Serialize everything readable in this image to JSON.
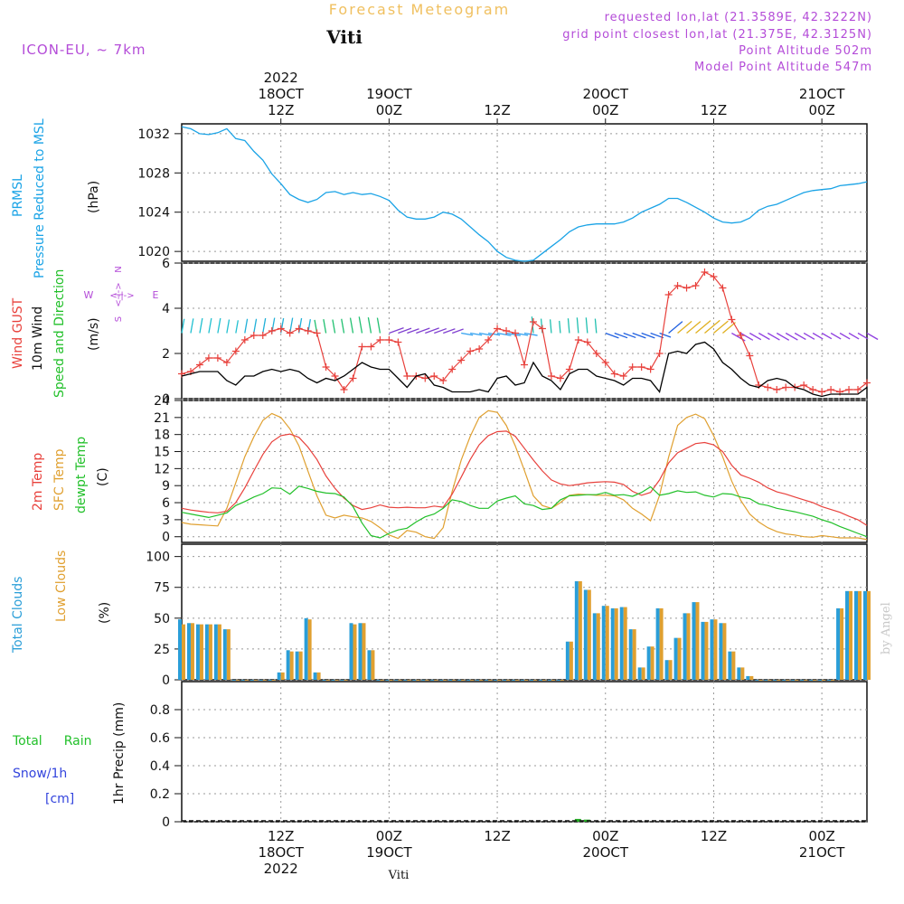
{
  "header": {
    "title": "Forecast Meteogram",
    "location": "Viti",
    "model": "ICON-EU, ~ 7km",
    "requested": "requested lon,lat (21.3589E, 42.3222N)",
    "grid_point": "grid point closest lon,lat (21.375E, 42.3125N)",
    "point_altitude": "Point Altitude 502m",
    "model_altitude": "Model Point Altitude 547m",
    "footer_location": "Viti",
    "credit": "by Angel"
  },
  "time_axis": {
    "top_labels": [
      {
        "t": 12,
        "lines": [
          "2022",
          "18OCT",
          "12Z"
        ]
      },
      {
        "t": 24,
        "lines": [
          "19OCT",
          "00Z"
        ]
      },
      {
        "t": 36,
        "lines": [
          "12Z"
        ]
      },
      {
        "t": 48,
        "lines": [
          "20OCT",
          "00Z"
        ]
      },
      {
        "t": 60,
        "lines": [
          "12Z"
        ]
      },
      {
        "t": 72,
        "lines": [
          "21OCT",
          "00Z"
        ]
      }
    ],
    "bottom_labels": [
      {
        "t": 12,
        "lines": [
          "12Z",
          "18OCT",
          "2022"
        ]
      },
      {
        "t": 24,
        "lines": [
          "00Z",
          "19OCT"
        ]
      },
      {
        "t": 36,
        "lines": [
          "12Z"
        ]
      },
      {
        "t": 48,
        "lines": [
          "00Z",
          "20OCT"
        ]
      },
      {
        "t": 60,
        "lines": [
          "12Z"
        ]
      },
      {
        "t": 72,
        "lines": [
          "00Z",
          "21OCT"
        ]
      }
    ]
  },
  "panels": {
    "pressure": {
      "labels": [
        "PRMSL",
        "Pressure Reduced to MSL"
      ],
      "unit": "(hPa)",
      "color": "#1aa3e6",
      "ylim": [
        1019,
        1033
      ],
      "ticks": [
        "1020",
        "1024",
        "1028",
        "1032"
      ]
    },
    "wind": {
      "labels": [
        "Wind GUST",
        "10m Wind",
        "Speed and Direction"
      ],
      "unit": "(m/s)",
      "compass": {
        "n": "N",
        "s": "S",
        "w": "W",
        "e": "E",
        "arrows": "<-|->"
      },
      "ylim": [
        0,
        6
      ],
      "ticks": [
        "0",
        "2",
        "4",
        "6"
      ]
    },
    "temp": {
      "labels": [
        "2m Temp",
        "SFC Temp",
        "dewpt Temp"
      ],
      "unit": "(C)",
      "ylim": [
        -1,
        24
      ],
      "ticks": [
        "0",
        "3",
        "6",
        "9",
        "12",
        "15",
        "18",
        "21",
        "24"
      ]
    },
    "clouds": {
      "labels": [
        "Total Clouds",
        "Low Clouds"
      ],
      "unit": "(%)",
      "ylim": [
        0,
        110
      ],
      "ticks": [
        "0",
        "25",
        "50",
        "75",
        "100"
      ]
    },
    "precip": {
      "labels": [
        "Total",
        "Rain",
        "Snow/1h",
        "[cm]"
      ],
      "axis_label": "1hr Precip (mm)",
      "ylim": [
        0,
        1
      ],
      "ticks": [
        "0",
        "0.2",
        "0.4",
        "0.6",
        "0.8"
      ]
    }
  },
  "colors": {
    "pressure": "#1aa3e6",
    "gust": "#e8413c",
    "wind": "#000000",
    "temp2m": "#e8413c",
    "sfc": "#e0a030",
    "dewpt": "#22c02a",
    "total_cloud": "#2a9ed8",
    "low_cloud": "#e0a030",
    "rain": "#22aa22",
    "snow": "#3344dd",
    "title": "#f0c060",
    "purple": "#b44cd8"
  },
  "chart_data": {
    "type": "line",
    "x_unit": "hours from 18OCT 00Z",
    "xlim": [
      1,
      77
    ],
    "pressure_hPa": {
      "t": [
        1,
        2,
        3,
        4,
        5,
        6,
        7,
        8,
        9,
        10,
        11,
        12,
        13,
        14,
        15,
        16,
        17,
        18,
        19,
        20,
        21,
        22,
        23,
        24,
        25,
        26,
        27,
        28,
        29,
        30,
        31,
        32,
        33,
        34,
        35,
        36,
        37,
        38,
        39,
        40,
        41,
        42,
        43,
        44,
        45,
        46,
        47,
        48,
        49,
        50,
        51,
        52,
        53,
        54,
        55,
        56,
        57,
        58,
        59,
        60,
        61,
        62,
        63,
        64,
        65,
        66,
        67,
        68,
        69,
        70,
        71,
        72,
        73,
        74,
        75,
        76,
        77
      ],
      "v": [
        1032.7,
        1032.5,
        1032.0,
        1031.9,
        1032.1,
        1032.5,
        1031.5,
        1031.3,
        1030.2,
        1029.3,
        1027.9,
        1026.9,
        1025.8,
        1025.3,
        1025.0,
        1025.3,
        1026.0,
        1026.1,
        1025.8,
        1026.0,
        1025.8,
        1025.9,
        1025.6,
        1025.2,
        1024.2,
        1023.5,
        1023.3,
        1023.3,
        1023.5,
        1024.0,
        1023.8,
        1023.3,
        1022.5,
        1021.7,
        1021.0,
        1020.0,
        1019.4,
        1019.1,
        1019.0,
        1019.1,
        1019.8,
        1020.5,
        1021.2,
        1022.0,
        1022.5,
        1022.7,
        1022.8,
        1022.8,
        1022.8,
        1023.0,
        1023.4,
        1024.0,
        1024.4,
        1024.8,
        1025.4,
        1025.4,
        1025.0,
        1024.5,
        1024.0,
        1023.4,
        1023.0,
        1022.9,
        1023.0,
        1023.4,
        1024.2,
        1024.6,
        1024.8,
        1025.2,
        1025.6,
        1026.0,
        1026.2,
        1026.3,
        1026.4,
        1026.7,
        1026.8,
        1026.9,
        1027.1
      ]
    },
    "wind_gust_ms": {
      "t": [
        1,
        2,
        3,
        4,
        5,
        6,
        7,
        8,
        9,
        10,
        11,
        12,
        13,
        14,
        15,
        16,
        17,
        18,
        19,
        20,
        21,
        22,
        23,
        24,
        25,
        26,
        27,
        28,
        29,
        30,
        31,
        32,
        33,
        34,
        35,
        36,
        37,
        38,
        39,
        40,
        41,
        42,
        43,
        44,
        45,
        46,
        47,
        48,
        49,
        50,
        51,
        52,
        53,
        54,
        55,
        56,
        57,
        58,
        59,
        60,
        61,
        62,
        63,
        64,
        65,
        66,
        67,
        68,
        69,
        70,
        71,
        72,
        73,
        74,
        75,
        76,
        77
      ],
      "v": [
        1.1,
        1.2,
        1.5,
        1.8,
        1.8,
        1.6,
        2.1,
        2.6,
        2.8,
        2.8,
        3.0,
        3.1,
        2.9,
        3.1,
        3.0,
        2.9,
        1.4,
        1.0,
        0.4,
        0.9,
        2.3,
        2.3,
        2.6,
        2.6,
        2.5,
        1.0,
        1.0,
        0.9,
        1.0,
        0.8,
        1.3,
        1.7,
        2.1,
        2.2,
        2.6,
        3.1,
        3.0,
        2.9,
        1.5,
        3.4,
        3.1,
        1.0,
        0.9,
        1.3,
        2.6,
        2.5,
        2.0,
        1.6,
        1.1,
        1.0,
        1.4,
        1.4,
        1.3,
        2.0,
        4.6,
        5.0,
        4.9,
        5.0,
        5.6,
        5.4,
        4.9,
        3.5,
        2.8,
        1.9,
        0.6,
        0.5,
        0.4,
        0.5,
        0.5,
        0.6,
        0.4,
        0.3,
        0.4,
        0.3,
        0.4,
        0.4,
        0.7
      ]
    },
    "wind_speed_ms": {
      "t": [
        1,
        2,
        3,
        4,
        5,
        6,
        7,
        8,
        9,
        10,
        11,
        12,
        13,
        14,
        15,
        16,
        17,
        18,
        19,
        20,
        21,
        22,
        23,
        24,
        25,
        26,
        27,
        28,
        29,
        30,
        31,
        32,
        33,
        34,
        35,
        36,
        37,
        38,
        39,
        40,
        41,
        42,
        43,
        44,
        45,
        46,
        47,
        48,
        49,
        50,
        51,
        52,
        53,
        54,
        55,
        56,
        57,
        58,
        59,
        60,
        61,
        62,
        63,
        64,
        65,
        66,
        67,
        68,
        69,
        70,
        71,
        72,
        73,
        74,
        75,
        76,
        77
      ],
      "v": [
        1.0,
        1.1,
        1.2,
        1.2,
        1.2,
        0.8,
        0.6,
        1.0,
        1.0,
        1.2,
        1.3,
        1.2,
        1.3,
        1.2,
        0.9,
        0.7,
        0.9,
        0.8,
        1.0,
        1.3,
        1.6,
        1.4,
        1.3,
        1.3,
        0.9,
        0.5,
        1.0,
        1.1,
        0.6,
        0.5,
        0.3,
        0.3,
        0.3,
        0.4,
        0.3,
        0.9,
        1.0,
        0.6,
        0.7,
        1.6,
        1.0,
        0.8,
        0.4,
        1.1,
        1.3,
        1.3,
        1.0,
        0.9,
        0.8,
        0.6,
        0.9,
        0.9,
        0.8,
        0.3,
        2.0,
        2.1,
        2.0,
        2.4,
        2.5,
        2.2,
        1.6,
        1.3,
        0.9,
        0.6,
        0.5,
        0.8,
        0.9,
        0.8,
        0.5,
        0.4,
        0.2,
        0.1,
        0.2,
        0.2,
        0.2,
        0.2,
        0.5
      ]
    },
    "temp_2m_C": {
      "t": [
        1,
        2,
        3,
        4,
        5,
        6,
        7,
        8,
        9,
        10,
        11,
        12,
        13,
        14,
        15,
        16,
        17,
        18,
        19,
        20,
        21,
        22,
        23,
        24,
        25,
        26,
        27,
        28,
        29,
        30,
        31,
        32,
        33,
        34,
        35,
        36,
        37,
        38,
        39,
        40,
        41,
        42,
        43,
        44,
        45,
        46,
        47,
        48,
        49,
        50,
        51,
        52,
        53,
        54,
        55,
        56,
        57,
        58,
        59,
        60,
        61,
        62,
        63,
        64,
        65,
        66,
        67,
        68,
        69,
        70,
        71,
        72,
        73,
        74,
        75,
        76,
        77
      ],
      "v": [
        5.0,
        4.7,
        4.5,
        4.3,
        4.2,
        4.5,
        6.0,
        8.6,
        11.6,
        14.5,
        16.7,
        17.8,
        18.1,
        17.5,
        15.8,
        13.6,
        10.7,
        8.5,
        6.8,
        5.5,
        4.8,
        5.1,
        5.6,
        5.2,
        5.1,
        5.2,
        5.1,
        5.1,
        5.4,
        5.2,
        7.5,
        10.5,
        13.6,
        16.2,
        17.8,
        18.5,
        18.6,
        17.7,
        15.6,
        13.5,
        11.6,
        10.0,
        9.3,
        9.0,
        9.2,
        9.5,
        9.6,
        9.7,
        9.6,
        9.2,
        8.0,
        7.3,
        7.8,
        10.0,
        13.0,
        14.8,
        15.6,
        16.4,
        16.6,
        16.2,
        15.0,
        12.6,
        10.9,
        10.3,
        9.6,
        8.6,
        7.9,
        7.5,
        7.0,
        6.5,
        6.0,
        5.3,
        4.8,
        4.3,
        3.6,
        3.0,
        2.0
      ]
    },
    "temp_sfc_C": {
      "t": [
        1,
        2,
        3,
        4,
        5,
        6,
        7,
        8,
        9,
        10,
        11,
        12,
        13,
        14,
        15,
        16,
        17,
        18,
        19,
        20,
        21,
        22,
        23,
        24,
        25,
        26,
        27,
        28,
        29,
        30,
        31,
        32,
        33,
        34,
        35,
        36,
        37,
        38,
        39,
        40,
        41,
        42,
        43,
        44,
        45,
        46,
        47,
        48,
        49,
        50,
        51,
        52,
        53,
        54,
        55,
        56,
        57,
        58,
        59,
        60,
        61,
        62,
        63,
        64,
        65,
        66,
        67,
        68,
        69,
        70,
        71,
        72,
        73,
        74,
        75,
        76,
        77
      ],
      "v": [
        2.5,
        2.2,
        2.1,
        2.0,
        1.9,
        5.0,
        9.5,
        14.1,
        17.6,
        20.5,
        21.7,
        21.0,
        19.0,
        16.0,
        11.6,
        7.2,
        3.8,
        3.3,
        3.8,
        3.5,
        3.3,
        2.7,
        1.6,
        0.3,
        -0.3,
        1.1,
        0.8,
        0.0,
        -0.3,
        1.6,
        8.0,
        13.5,
        17.7,
        21.0,
        22.2,
        21.9,
        19.6,
        16.0,
        11.7,
        7.2,
        5.5,
        5.0,
        6.0,
        7.3,
        7.5,
        7.4,
        7.3,
        7.3,
        7.2,
        6.5,
        5.0,
        4.0,
        2.8,
        7.3,
        14.0,
        19.6,
        21.0,
        21.6,
        20.8,
        17.8,
        14.1,
        9.8,
        6.4,
        4.0,
        2.6,
        1.6,
        0.9,
        0.5,
        0.3,
        0.0,
        -0.1,
        0.2,
        0.0,
        -0.2,
        -0.2,
        -0.2,
        -0.5
      ]
    },
    "temp_dewpt_C": {
      "t": [
        1,
        2,
        3,
        4,
        5,
        6,
        7,
        8,
        9,
        10,
        11,
        12,
        13,
        14,
        15,
        16,
        17,
        18,
        19,
        20,
        21,
        22,
        23,
        24,
        25,
        26,
        27,
        28,
        29,
        30,
        31,
        32,
        33,
        34,
        35,
        36,
        37,
        38,
        39,
        40,
        41,
        42,
        43,
        44,
        45,
        46,
        47,
        48,
        49,
        50,
        51,
        52,
        53,
        54,
        55,
        56,
        57,
        58,
        59,
        60,
        61,
        62,
        63,
        64,
        65,
        66,
        67,
        68,
        69,
        70,
        71,
        72,
        73,
        74,
        75,
        76,
        77
      ],
      "v": [
        4.3,
        4.0,
        3.7,
        3.4,
        3.8,
        4.2,
        5.5,
        6.2,
        7.0,
        7.6,
        8.6,
        8.5,
        7.5,
        8.9,
        8.5,
        8.0,
        7.7,
        7.6,
        7.0,
        5.3,
        2.4,
        0.2,
        -0.2,
        0.6,
        1.2,
        1.5,
        2.6,
        3.5,
        4.0,
        5.0,
        6.5,
        6.2,
        5.5,
        5.0,
        5.0,
        6.3,
        6.8,
        7.2,
        5.8,
        5.5,
        4.8,
        5.0,
        6.5,
        7.2,
        7.3,
        7.4,
        7.4,
        7.8,
        7.3,
        7.4,
        7.1,
        7.8,
        8.8,
        7.3,
        7.6,
        8.1,
        7.8,
        7.9,
        7.3,
        7.0,
        7.6,
        7.5,
        7.0,
        6.7,
        5.8,
        5.5,
        5.0,
        4.7,
        4.4,
        4.0,
        3.6,
        3.0,
        2.5,
        1.8,
        1.2,
        0.6,
        0.0
      ]
    },
    "clouds_pct": {
      "t": [
        1,
        2,
        3,
        4,
        5,
        6,
        7,
        8,
        9,
        10,
        11,
        12,
        13,
        14,
        15,
        16,
        17,
        18,
        19,
        20,
        21,
        22,
        23,
        24,
        25,
        26,
        27,
        28,
        29,
        30,
        31,
        32,
        33,
        34,
        35,
        36,
        37,
        38,
        39,
        40,
        41,
        42,
        43,
        44,
        45,
        46,
        47,
        48,
        49,
        50,
        51,
        52,
        53,
        54,
        55,
        56,
        57,
        58,
        59,
        60,
        61,
        62,
        63,
        64,
        65,
        66,
        67,
        68,
        69,
        70,
        71,
        72,
        73,
        74,
        75,
        76,
        77
      ],
      "total": [
        49,
        46,
        45,
        45,
        45,
        41,
        0,
        0,
        0,
        0,
        0,
        6,
        24,
        23,
        50,
        6,
        0,
        0,
        0,
        46,
        46,
        24,
        0,
        0,
        0,
        0,
        0,
        0,
        0,
        0,
        0,
        0,
        0,
        0,
        0,
        0,
        0,
        0,
        0,
        0,
        0,
        0,
        0,
        31,
        80,
        73,
        54,
        60,
        58,
        59,
        41,
        10,
        27,
        58,
        16,
        34,
        54,
        63,
        47,
        49,
        46,
        23,
        10,
        3,
        0,
        0,
        0,
        0,
        0,
        0,
        0,
        0,
        0,
        58,
        72,
        72,
        72
      ],
      "low": [
        45,
        46,
        45,
        45,
        45,
        41,
        0,
        0,
        0,
        0,
        0,
        6,
        23,
        23,
        49,
        6,
        0,
        0,
        0,
        45,
        46,
        24,
        0,
        0,
        0,
        0,
        0,
        0,
        0,
        0,
        0,
        0,
        0,
        0,
        0,
        0,
        0,
        0,
        0,
        0,
        0,
        0,
        0,
        31,
        80,
        73,
        54,
        60,
        58,
        59,
        41,
        10,
        27,
        58,
        16,
        34,
        54,
        63,
        47,
        49,
        46,
        23,
        10,
        3,
        0,
        0,
        0,
        0,
        0,
        0,
        0,
        0,
        0,
        58,
        72,
        72,
        72
      ]
    },
    "precip_mm": {
      "t": [
        45,
        46
      ],
      "rain": [
        0.02,
        0.015
      ],
      "snow": [
        0,
        0
      ]
    }
  }
}
